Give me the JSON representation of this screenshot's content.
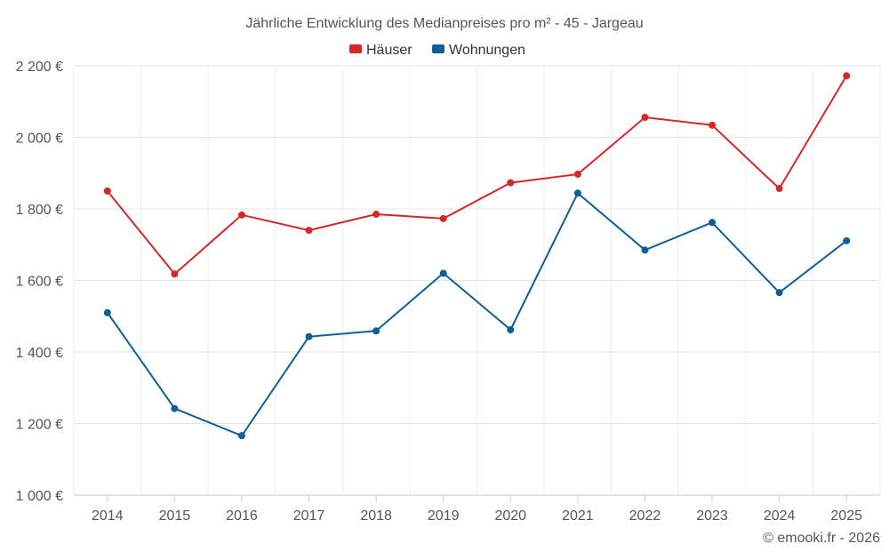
{
  "chart_data": {
    "type": "line",
    "title": "Jährliche Entwicklung des Medianpreises pro m² - 45 - Jargeau",
    "xlabel": "",
    "ylabel": "",
    "categories": [
      "2014",
      "2015",
      "2016",
      "2017",
      "2018",
      "2019",
      "2020",
      "2021",
      "2022",
      "2023",
      "2024",
      "2025"
    ],
    "series": [
      {
        "name": "Häuser",
        "color": "#d62728",
        "values": [
          1850,
          1618,
          1783,
          1740,
          1785,
          1773,
          1873,
          1897,
          2056,
          2034,
          1857,
          2172
        ]
      },
      {
        "name": "Wohnungen",
        "color": "#0d6097",
        "values": [
          1510,
          1242,
          1166,
          1443,
          1459,
          1620,
          1462,
          1844,
          1685,
          1762,
          1566,
          1711
        ]
      }
    ],
    "ylim": [
      1000,
      2200
    ],
    "yticks": [
      1000,
      1200,
      1400,
      1600,
      1800,
      2000,
      2200
    ],
    "ytick_labels": [
      "1 000 €",
      "1 200 €",
      "1 400 €",
      "1 600 €",
      "1 800 €",
      "2 000 €",
      "2 200 €"
    ],
    "grid": true,
    "legend_position": "top-center",
    "credit": "© emooki.fr - 2026"
  }
}
